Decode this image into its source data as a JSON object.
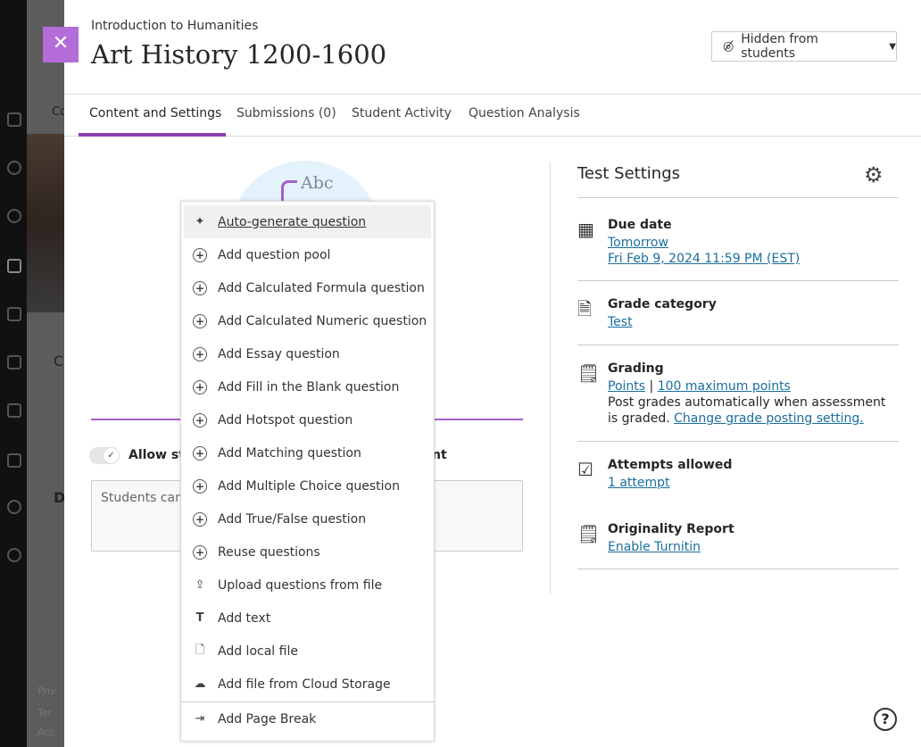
{
  "header": {
    "breadcrumb": "Introduction to Humanities",
    "title": "Art History 1200-1600",
    "visibility_label": "Hidden from students"
  },
  "tabs": [
    {
      "label": "Content and Settings",
      "active": true
    },
    {
      "label": "Submissions (0)"
    },
    {
      "label": "Student Activity"
    },
    {
      "label": "Question Analysis"
    }
  ],
  "background": {
    "tab_fragment": "Co",
    "heading_fragment_1": "C",
    "heading_fragment_2": "D",
    "footer": [
      "Priv",
      "Ter",
      "Acc"
    ]
  },
  "content": {
    "illustration_text": "Abc",
    "allow_label_start": "Allow stu",
    "allow_label_end": "nt",
    "description_fragment": "Students can"
  },
  "menu": {
    "items": [
      {
        "label": "Auto-generate question",
        "icon": "sparkle-icon",
        "highlighted": true
      },
      {
        "label": "Add question pool",
        "icon": "plus-circle-icon"
      },
      {
        "label": "Add Calculated Formula question",
        "icon": "plus-circle-icon"
      },
      {
        "label": "Add Calculated Numeric question",
        "icon": "plus-circle-icon"
      },
      {
        "label": "Add Essay question",
        "icon": "plus-circle-icon"
      },
      {
        "label": "Add Fill in the Blank question",
        "icon": "plus-circle-icon"
      },
      {
        "label": "Add Hotspot question",
        "icon": "plus-circle-icon"
      },
      {
        "label": "Add Matching question",
        "icon": "plus-circle-icon"
      },
      {
        "label": "Add Multiple Choice question",
        "icon": "plus-circle-icon"
      },
      {
        "label": "Add True/False question",
        "icon": "plus-circle-icon"
      },
      {
        "label": "Reuse questions",
        "icon": "plus-circle-icon"
      },
      {
        "label": "Upload questions from file",
        "icon": "file-upload-icon"
      },
      {
        "label": "Add text",
        "icon": "text-icon"
      },
      {
        "label": "Add local file",
        "icon": "file-icon"
      },
      {
        "label": "Add file from Cloud Storage",
        "icon": "cloud-icon"
      },
      {
        "label": "Add Page Break",
        "icon": "page-break-icon"
      }
    ]
  },
  "settings": {
    "title": "Test Settings",
    "due": {
      "label": "Due date",
      "value": "Tomorrow",
      "date": "Fri Feb 9, 2024 11:59 PM (EST)"
    },
    "category": {
      "label": "Grade category",
      "value": "Test"
    },
    "grading": {
      "label": "Grading",
      "scheme": "Points",
      "sep": "|",
      "max": "100 maximum points",
      "note": "Post grades automatically when assessment is graded.",
      "change": "Change grade posting setting."
    },
    "attempts": {
      "label": "Attempts allowed",
      "value": "1 attempt"
    },
    "originality": {
      "label": "Originality Report",
      "value": "Enable Turnitin"
    }
  },
  "colors": {
    "accent": "#8a3fb0",
    "link": "#1a6e9e",
    "close": "#b46dd8"
  }
}
